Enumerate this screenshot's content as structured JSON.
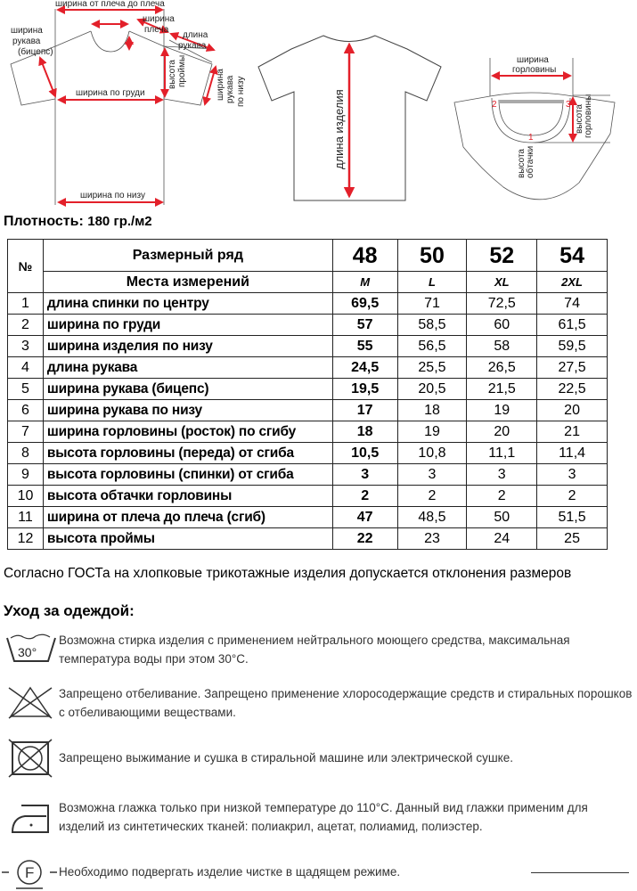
{
  "diagrams": {
    "front": {
      "shoulder_to_shoulder": "ширина от плеча до плеча",
      "shoulder_width": [
        "ширина",
        "плеча"
      ],
      "sleeve_length": [
        "длина",
        "рукава"
      ],
      "sleeve_width_bicep": [
        "ширина",
        "рукава",
        "(бицепс)"
      ],
      "chest_width": "ширина по груди",
      "armhole_height": [
        "высота",
        "проймы"
      ],
      "sleeve_bottom_width": [
        "ширина",
        "рукава",
        "по низу"
      ],
      "bottom_width": "ширина по низу"
    },
    "back": {
      "length": "длина изделия"
    },
    "neck": {
      "neck_width": [
        "ширина",
        "горловины"
      ],
      "neck_height": [
        "высота",
        "горловины"
      ],
      "facing_height": [
        "высота",
        "обтачки"
      ],
      "markers": [
        "1",
        "2",
        "3"
      ]
    }
  },
  "density": {
    "label": "Плотность:",
    "value": "180 гр./м2"
  },
  "table": {
    "num_header": "№",
    "size_row_label": "Размерный ряд",
    "measure_label": "Места измерений",
    "sizes": [
      "48",
      "50",
      "52",
      "54"
    ],
    "letters": [
      "M",
      "L",
      "XL",
      "2XL"
    ],
    "rows": [
      {
        "n": "1",
        "name": "длина  спинки по центру",
        "v": [
          "69,5",
          "71",
          "72,5",
          "74"
        ]
      },
      {
        "n": "2",
        "name": "ширина по груди",
        "v": [
          "57",
          "58,5",
          "60",
          "61,5"
        ]
      },
      {
        "n": "3",
        "name": "ширина изделия по низу",
        "v": [
          "55",
          "56,5",
          "58",
          "59,5"
        ]
      },
      {
        "n": "4",
        "name": "длина рукава",
        "v": [
          "24,5",
          "25,5",
          "26,5",
          "27,5"
        ]
      },
      {
        "n": "5",
        "name": "ширина рукава (бицепс)",
        "v": [
          "19,5",
          "20,5",
          "21,5",
          "22,5"
        ]
      },
      {
        "n": "6",
        "name": "ширина рукава по низу",
        "v": [
          "17",
          "18",
          "19",
          "20"
        ]
      },
      {
        "n": "7",
        "name": "ширина горловины (росток) по сгибу",
        "v": [
          "18",
          "19",
          "20",
          "21"
        ]
      },
      {
        "n": "8",
        "name": "высота горловины (переда) от сгиба",
        "v": [
          "10,5",
          "10,8",
          "11,1",
          "11,4"
        ]
      },
      {
        "n": "9",
        "name": "высота горловины (спинки) от сгиба",
        "v": [
          "3",
          "3",
          "3",
          "3"
        ]
      },
      {
        "n": "10",
        "name": "высота обтачки горловины",
        "v": [
          "2",
          "2",
          "2",
          "2"
        ]
      },
      {
        "n": "11",
        "name": "ширина от плеча до плеча (сгиб)",
        "v": [
          "47",
          "48,5",
          "50",
          "51,5"
        ]
      },
      {
        "n": "12",
        "name": "высота проймы",
        "v": [
          "22",
          "23",
          "24",
          "25"
        ]
      }
    ]
  },
  "note": "Согласно ГОСТа на хлопковые трикотажные изделия допускается отклонения размеров",
  "care": {
    "title": "Уход за одеждой:",
    "items": [
      {
        "icon": "wash-30-icon",
        "icon_text": "30°",
        "text": "Возможна стирка изделия с применением нейтрального моющего средства, максимальная температура воды при этом 30°С."
      },
      {
        "icon": "no-bleach-icon",
        "text": "Запрещено отбеливание. Запрещено применение хлоросодержащие средств и стиральных порошков с отбеливающими веществами."
      },
      {
        "icon": "no-tumble-dry-icon",
        "text": "Запрещено выжимание и сушка в стиральной машине или электрической сушке."
      },
      {
        "icon": "iron-low-icon",
        "text": "Возможна глажка только при низкой температуре до 110°С. Данный вид глажки применим для изделий из синтетических тканей: полиакрил, ацетат, полиамид, полиэстер."
      },
      {
        "icon": "dry-clean-f-icon",
        "icon_text": "F",
        "text": "Необходимо подвергать изделие чистке в щадящем режиме."
      }
    ]
  },
  "colors": {
    "arrow": "#e3202a",
    "line": "#444444",
    "text": "#333333"
  }
}
